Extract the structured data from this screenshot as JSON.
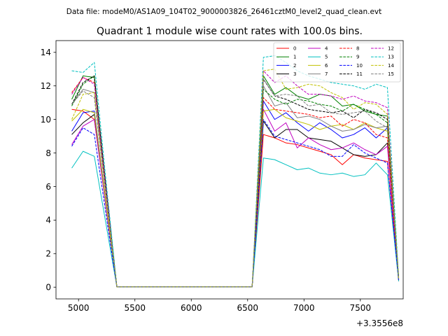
{
  "suptitle": "Data file: modeM0/AS1A09_104T02_9000003826_26461cztM0_level2_quad_clean.evt",
  "chart_data": {
    "type": "line",
    "title": "Quadrant 1 module wise count rates with 100.0s bins.",
    "xlabel": "",
    "ylabel": "",
    "x_offset_label": "+3.3556e8",
    "xlim": [
      4800,
      7880
    ],
    "ylim": [
      -0.7,
      14.7
    ],
    "xticks": [
      5000,
      5500,
      6000,
      6500,
      7000,
      7500
    ],
    "xtick_labels": [
      "5000",
      "5500",
      "6000",
      "6500",
      "7000",
      "7500"
    ],
    "yticks": [
      0,
      2,
      4,
      6,
      8,
      10,
      12,
      14
    ],
    "ytick_labels": [
      "0",
      "2",
      "4",
      "6",
      "8",
      "10",
      "12",
      "14"
    ],
    "legend_position": "upper right",
    "x": [
      4940,
      5040,
      5140,
      5240,
      5340,
      5440,
      5540,
      5640,
      5740,
      5840,
      5940,
      6040,
      6140,
      6240,
      6340,
      6440,
      6540,
      6640,
      6740,
      6840,
      6940,
      7040,
      7140,
      7240,
      7340,
      7440,
      7540,
      7640,
      7740,
      7840
    ],
    "series": [
      {
        "name": "0",
        "color": "#ff0000",
        "dash": "solid",
        "values": [
          10.6,
          10.5,
          10.0,
          5.0,
          0.02,
          0.02,
          0.02,
          0.02,
          0.02,
          0.02,
          0.02,
          0.02,
          0.02,
          0.02,
          0.02,
          0.02,
          0.02,
          9.1,
          8.9,
          8.6,
          8.5,
          8.3,
          8.1,
          7.9,
          7.3,
          7.9,
          7.7,
          7.6,
          7.5,
          0.35
        ]
      },
      {
        "name": "1",
        "color": "#008000",
        "dash": "solid",
        "values": [
          11.2,
          12.6,
          12.5,
          6.0,
          0.02,
          0.02,
          0.02,
          0.02,
          0.02,
          0.02,
          0.02,
          0.02,
          0.02,
          0.02,
          0.02,
          0.02,
          0.02,
          12.6,
          11.5,
          11.9,
          11.4,
          11.2,
          11.5,
          11.4,
          10.8,
          10.9,
          10.5,
          10.3,
          10.2,
          0.5
        ]
      },
      {
        "name": "2",
        "color": "#0000ff",
        "dash": "solid",
        "values": [
          9.3,
          10.4,
          10.5,
          5.2,
          0.02,
          0.02,
          0.02,
          0.02,
          0.02,
          0.02,
          0.02,
          0.02,
          0.02,
          0.02,
          0.02,
          0.02,
          0.02,
          11.1,
          10.0,
          10.4,
          9.8,
          9.3,
          9.8,
          9.4,
          8.9,
          9.1,
          9.5,
          8.9,
          9.5,
          0.45
        ]
      },
      {
        "name": "3",
        "color": "#000000",
        "dash": "solid",
        "values": [
          9.1,
          9.8,
          10.3,
          5.0,
          0.02,
          0.02,
          0.02,
          0.02,
          0.02,
          0.02,
          0.02,
          0.02,
          0.02,
          0.02,
          0.02,
          0.02,
          0.02,
          9.9,
          8.9,
          9.4,
          9.4,
          8.9,
          8.8,
          8.7,
          8.3,
          7.9,
          7.8,
          7.9,
          8.6,
          0.4
        ]
      },
      {
        "name": "4",
        "color": "#c000c0",
        "dash": "solid",
        "values": [
          8.5,
          9.6,
          10.0,
          5.0,
          0.02,
          0.02,
          0.02,
          0.02,
          0.02,
          0.02,
          0.02,
          0.02,
          0.02,
          0.02,
          0.02,
          0.02,
          0.02,
          10.6,
          9.3,
          9.8,
          8.3,
          8.9,
          8.5,
          8.2,
          8.3,
          8.6,
          8.2,
          7.9,
          8.4,
          0.4
        ]
      },
      {
        "name": "5",
        "color": "#00c0c0",
        "dash": "solid",
        "values": [
          7.1,
          8.1,
          7.8,
          3.9,
          0.02,
          0.02,
          0.02,
          0.02,
          0.02,
          0.02,
          0.02,
          0.02,
          0.02,
          0.02,
          0.02,
          0.02,
          0.02,
          7.7,
          7.6,
          7.3,
          7.0,
          7.1,
          6.8,
          6.7,
          6.8,
          6.6,
          6.7,
          7.4,
          6.7,
          0.35
        ]
      },
      {
        "name": "6",
        "color": "#c0c000",
        "dash": "solid",
        "values": [
          9.9,
          10.6,
          10.4,
          5.2,
          0.02,
          0.02,
          0.02,
          0.02,
          0.02,
          0.02,
          0.02,
          0.02,
          0.02,
          0.02,
          0.02,
          0.02,
          0.02,
          10.5,
          10.6,
          10.1,
          9.9,
          9.7,
          9.4,
          9.6,
          9.7,
          9.4,
          9.8,
          9.5,
          9.3,
          0.45
        ]
      },
      {
        "name": "7",
        "color": "#808080",
        "dash": "solid",
        "values": [
          10.9,
          11.8,
          11.6,
          5.8,
          0.02,
          0.02,
          0.02,
          0.02,
          0.02,
          0.02,
          0.02,
          0.02,
          0.02,
          0.02,
          0.02,
          0.02,
          0.02,
          12.0,
          10.8,
          11.0,
          10.1,
          10.2,
          10.0,
          9.6,
          9.3,
          9.4,
          9.7,
          9.5,
          9.6,
          0.45
        ]
      },
      {
        "name": "8",
        "color": "#ff0000",
        "dash": "dashed",
        "values": [
          11.6,
          12.5,
          12.2,
          6.0,
          0.02,
          0.02,
          0.02,
          0.02,
          0.02,
          0.02,
          0.02,
          0.02,
          0.02,
          0.02,
          0.02,
          0.02,
          0.02,
          11.3,
          10.6,
          10.5,
          10.4,
          10.3,
          10.1,
          10.2,
          9.6,
          10.0,
          9.8,
          9.1,
          8.9,
          0.5
        ]
      },
      {
        "name": "9",
        "color": "#008000",
        "dash": "dashed",
        "values": [
          10.8,
          12.1,
          12.6,
          6.1,
          0.02,
          0.02,
          0.02,
          0.02,
          0.02,
          0.02,
          0.02,
          0.02,
          0.02,
          0.02,
          0.02,
          0.02,
          0.02,
          11.8,
          11.2,
          10.9,
          11.2,
          11.1,
          10.9,
          10.8,
          10.5,
          10.9,
          10.6,
          10.3,
          9.8,
          0.5
        ]
      },
      {
        "name": "10",
        "color": "#0000ff",
        "dash": "dashed",
        "values": [
          8.4,
          9.5,
          9.1,
          4.5,
          0.02,
          0.02,
          0.02,
          0.02,
          0.02,
          0.02,
          0.02,
          0.02,
          0.02,
          0.02,
          0.02,
          0.02,
          0.02,
          10.0,
          9.0,
          8.8,
          8.6,
          8.4,
          8.2,
          7.8,
          7.8,
          8.5,
          8.0,
          7.7,
          7.4,
          0.4
        ]
      },
      {
        "name": "11",
        "color": "#000000",
        "dash": "dashed",
        "values": [
          10.9,
          12.2,
          12.6,
          6.2,
          0.02,
          0.02,
          0.02,
          0.02,
          0.02,
          0.02,
          0.02,
          0.02,
          0.02,
          0.02,
          0.02,
          0.02,
          0.02,
          12.4,
          11.4,
          11.2,
          10.9,
          10.6,
          10.5,
          10.4,
          10.5,
          10.1,
          10.6,
          10.4,
          10.0,
          0.5
        ]
      },
      {
        "name": "12",
        "color": "#c000c0",
        "dash": "dashed",
        "values": [
          11.5,
          12.5,
          12.1,
          6.0,
          0.02,
          0.02,
          0.02,
          0.02,
          0.02,
          0.02,
          0.02,
          0.02,
          0.02,
          0.02,
          0.02,
          0.02,
          0.02,
          12.9,
          12.2,
          12.6,
          12.0,
          11.5,
          11.5,
          11.4,
          11.2,
          11.4,
          11.1,
          11.0,
          10.7,
          0.55
        ]
      },
      {
        "name": "13",
        "color": "#00c0c0",
        "dash": "dashed",
        "values": [
          12.9,
          12.8,
          13.4,
          6.6,
          0.02,
          0.02,
          0.02,
          0.02,
          0.02,
          0.02,
          0.02,
          0.02,
          0.02,
          0.02,
          0.02,
          0.02,
          0.02,
          13.7,
          13.8,
          13.4,
          12.9,
          12.6,
          12.4,
          12.2,
          12.1,
          12.0,
          11.8,
          12.1,
          11.9,
          0.6
        ]
      },
      {
        "name": "14",
        "color": "#c0c000",
        "dash": "dashed",
        "values": [
          10.0,
          11.5,
          11.6,
          5.7,
          0.02,
          0.02,
          0.02,
          0.02,
          0.02,
          0.02,
          0.02,
          0.02,
          0.02,
          0.02,
          0.02,
          0.02,
          0.02,
          12.9,
          13.0,
          11.8,
          11.9,
          12.1,
          12.0,
          11.6,
          11.3,
          10.6,
          11.0,
          10.9,
          10.3,
          0.55
        ]
      },
      {
        "name": "15",
        "color": "#808080",
        "dash": "dashed",
        "values": [
          10.9,
          11.7,
          11.3,
          5.6,
          0.02,
          0.02,
          0.02,
          0.02,
          0.02,
          0.02,
          0.02,
          0.02,
          0.02,
          0.02,
          0.02,
          0.02,
          0.02,
          12.4,
          11.4,
          11.5,
          11.4,
          10.8,
          10.9,
          10.4,
          10.3,
          10.4,
          10.5,
          9.9,
          9.5,
          0.5
        ]
      }
    ]
  }
}
